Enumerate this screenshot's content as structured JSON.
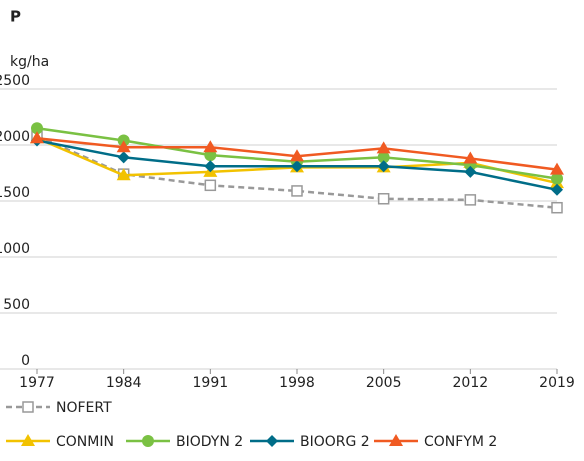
{
  "chart_data": {
    "type": "line",
    "title": "P",
    "y_label": "kg/ha",
    "x": [
      1977,
      1984,
      1991,
      1998,
      2005,
      2012,
      2019
    ],
    "xlim": [
      1977,
      2019
    ],
    "xticks": [
      1977,
      1984,
      1991,
      1998,
      2005,
      2012,
      2019
    ],
    "ylim": [
      0,
      2500
    ],
    "yticks": [
      0,
      500,
      1000,
      1500,
      2000,
      2500
    ],
    "grid": true,
    "series": [
      {
        "name": "NOFERT",
        "color": "#999999",
        "marker": "square",
        "dashed": true,
        "values": [
          2080,
          1740,
          1640,
          1590,
          1520,
          1510,
          1440
        ]
      },
      {
        "name": "CONMIN",
        "color": "#f2c200",
        "marker": "triangle",
        "dashed": false,
        "values": [
          2060,
          1730,
          1760,
          1800,
          1800,
          1840,
          1660
        ]
      },
      {
        "name": "BIODYN 2",
        "color": "#7ac143",
        "marker": "circle",
        "dashed": false,
        "values": [
          2150,
          2040,
          1910,
          1850,
          1890,
          1820,
          1700
        ]
      },
      {
        "name": "BIOORG 2",
        "color": "#006d88",
        "marker": "diamond",
        "dashed": false,
        "values": [
          2040,
          1890,
          1810,
          1810,
          1810,
          1760,
          1600
        ]
      },
      {
        "name": "CONFYM 2",
        "color": "#f05a22",
        "marker": "triangle",
        "dashed": false,
        "values": [
          2060,
          1980,
          1980,
          1900,
          1970,
          1880,
          1780
        ]
      }
    ]
  }
}
